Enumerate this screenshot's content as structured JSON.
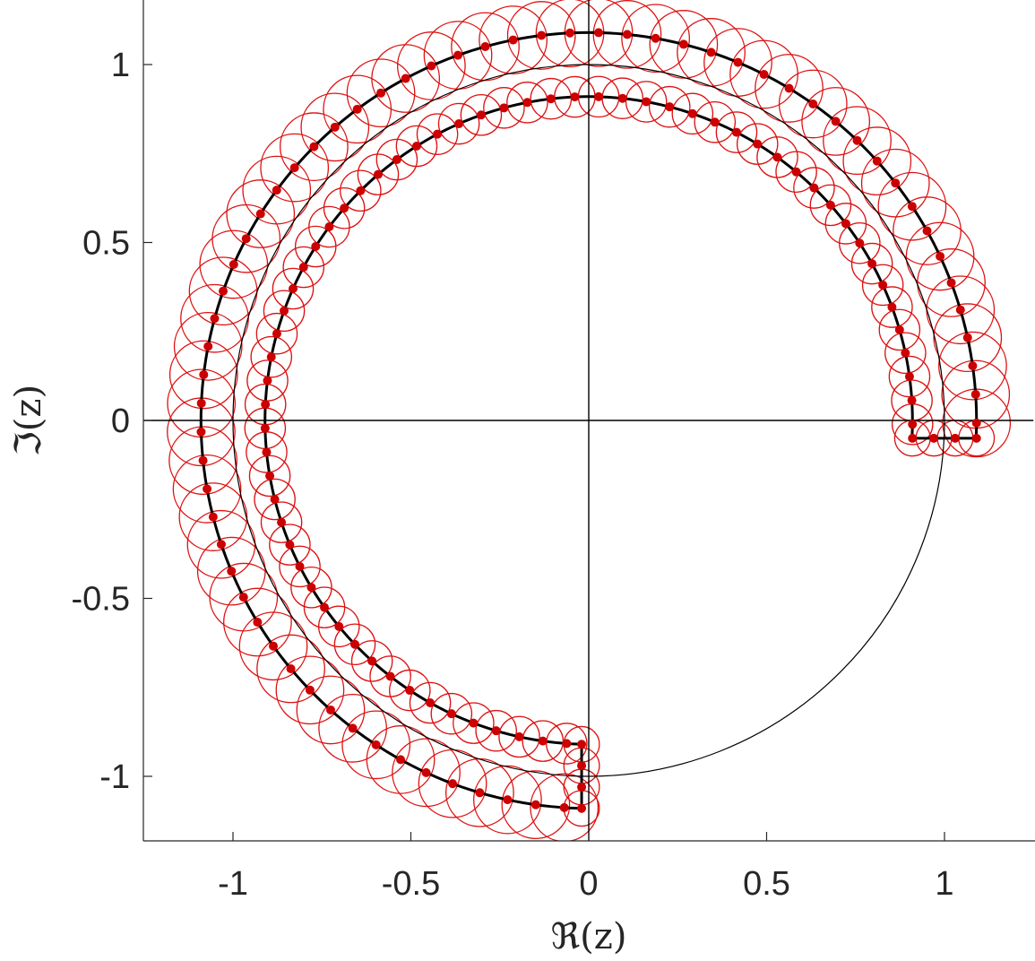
{
  "chart_data": {
    "type": "scatter",
    "title": "",
    "xlabel": "ℜ(z)",
    "ylabel": "ℑ(z)",
    "xlim": [
      -1.25,
      1.25
    ],
    "ylim": [
      -1.25,
      1.25
    ],
    "xticks": [
      -1,
      -0.5,
      0,
      0.5,
      1
    ],
    "yticks": [
      -1,
      -0.5,
      0,
      0.5,
      1
    ],
    "xtick_labels": [
      "-1",
      "-0.5",
      "0",
      "0.5",
      "1"
    ],
    "ytick_labels": [
      "-1",
      "-0.5",
      "0",
      "0.5",
      "1"
    ],
    "grid": false,
    "legend": "none",
    "colors": {
      "points": "#cc0000",
      "circles": "#dd1111",
      "contour": "#000000",
      "unit_circle": "#000000",
      "axes": "#000000"
    },
    "reference_curves": [
      {
        "shape": "unit-circle",
        "center": [
          0,
          0
        ],
        "radius": 1
      },
      {
        "shape": "horizontal-line",
        "y": 0
      },
      {
        "shape": "vertical-line",
        "x": 0
      }
    ],
    "contour": {
      "outer_arc": {
        "radius": 1.09,
        "theta_start_deg": -2.5,
        "theta_end_deg": 268.5
      },
      "inner_arc": {
        "radius": 0.91,
        "theta_start_deg": -2.8,
        "theta_end_deg": 268.2
      },
      "closing_segments": [
        {
          "from": [
            1.09,
            -0.05
          ],
          "to": [
            0.91,
            -0.05
          ]
        },
        {
          "from": [
            -0.02,
            -1.09
          ],
          "to": [
            -0.02,
            -0.91
          ]
        }
      ]
    },
    "quadrature_points": {
      "outer_arc": {
        "count": 64,
        "circle_radius": 0.095
      },
      "inner_arc": {
        "count": 64,
        "circle_radius": 0.057
      },
      "closing_segments": {
        "count_each": 4,
        "circle_radius": 0.05
      }
    }
  }
}
